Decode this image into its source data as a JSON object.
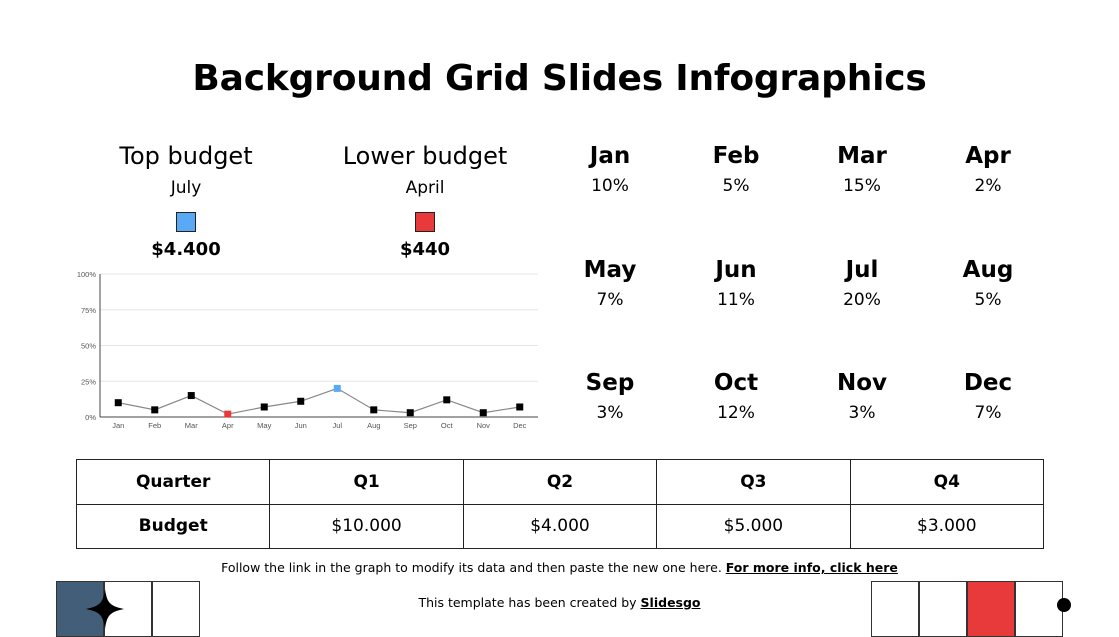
{
  "title": "Background Grid Slides Infographics",
  "top_budget": {
    "heading": "Top budget",
    "month": "July",
    "value": "$4.400",
    "color": "#5aa9f5"
  },
  "lower_budget": {
    "heading": "Lower budget",
    "month": "April",
    "value": "$440",
    "color": "#e83a3a"
  },
  "months": [
    {
      "name": "Jan",
      "pct": "10%"
    },
    {
      "name": "Feb",
      "pct": "5%"
    },
    {
      "name": "Mar",
      "pct": "15%"
    },
    {
      "name": "Apr",
      "pct": "2%"
    },
    {
      "name": "May",
      "pct": "7%"
    },
    {
      "name": "Jun",
      "pct": "11%"
    },
    {
      "name": "Jul",
      "pct": "20%"
    },
    {
      "name": "Aug",
      "pct": "5%"
    },
    {
      "name": "Sep",
      "pct": "3%"
    },
    {
      "name": "Oct",
      "pct": "12%"
    },
    {
      "name": "Nov",
      "pct": "3%"
    },
    {
      "name": "Dec",
      "pct": "7%"
    }
  ],
  "chart_data": {
    "type": "line",
    "categories": [
      "Jan",
      "Feb",
      "Mar",
      "Apr",
      "May",
      "Jun",
      "Jul",
      "Aug",
      "Sep",
      "Oct",
      "Nov",
      "Dec"
    ],
    "series": [
      {
        "values": [
          10,
          5,
          15,
          2,
          7,
          11,
          20,
          5,
          3,
          12,
          3,
          7
        ]
      }
    ],
    "yticks": [
      "0%",
      "25%",
      "50%",
      "75%",
      "100%"
    ],
    "ylim": [
      0,
      100
    ],
    "grid": true,
    "highlight": {
      "max_index": 6,
      "min_index": 3
    },
    "colors": {
      "line": "#888888",
      "point": "#000000",
      "max": "#5aa9f5",
      "min": "#e83a3a",
      "grid": "#e5e5e5"
    },
    "title": "",
    "xlabel": "",
    "ylabel": ""
  },
  "quarter_table": {
    "header": [
      "Quarter",
      "Q1",
      "Q2",
      "Q3",
      "Q4"
    ],
    "row": [
      "Budget",
      "$10.000",
      "$4.000",
      "$5.000",
      "$3.000"
    ]
  },
  "footnote": {
    "text": "Follow the link in the graph to modify its data and then paste the new one here. ",
    "link": "For more info, click here"
  },
  "credit": {
    "text": "This template has been created by ",
    "link": "Slidesgo"
  },
  "decor": {
    "left_fill": "#435e78",
    "right_fill": "#e83a3a",
    "star_icon": "four-point-star-icon"
  }
}
